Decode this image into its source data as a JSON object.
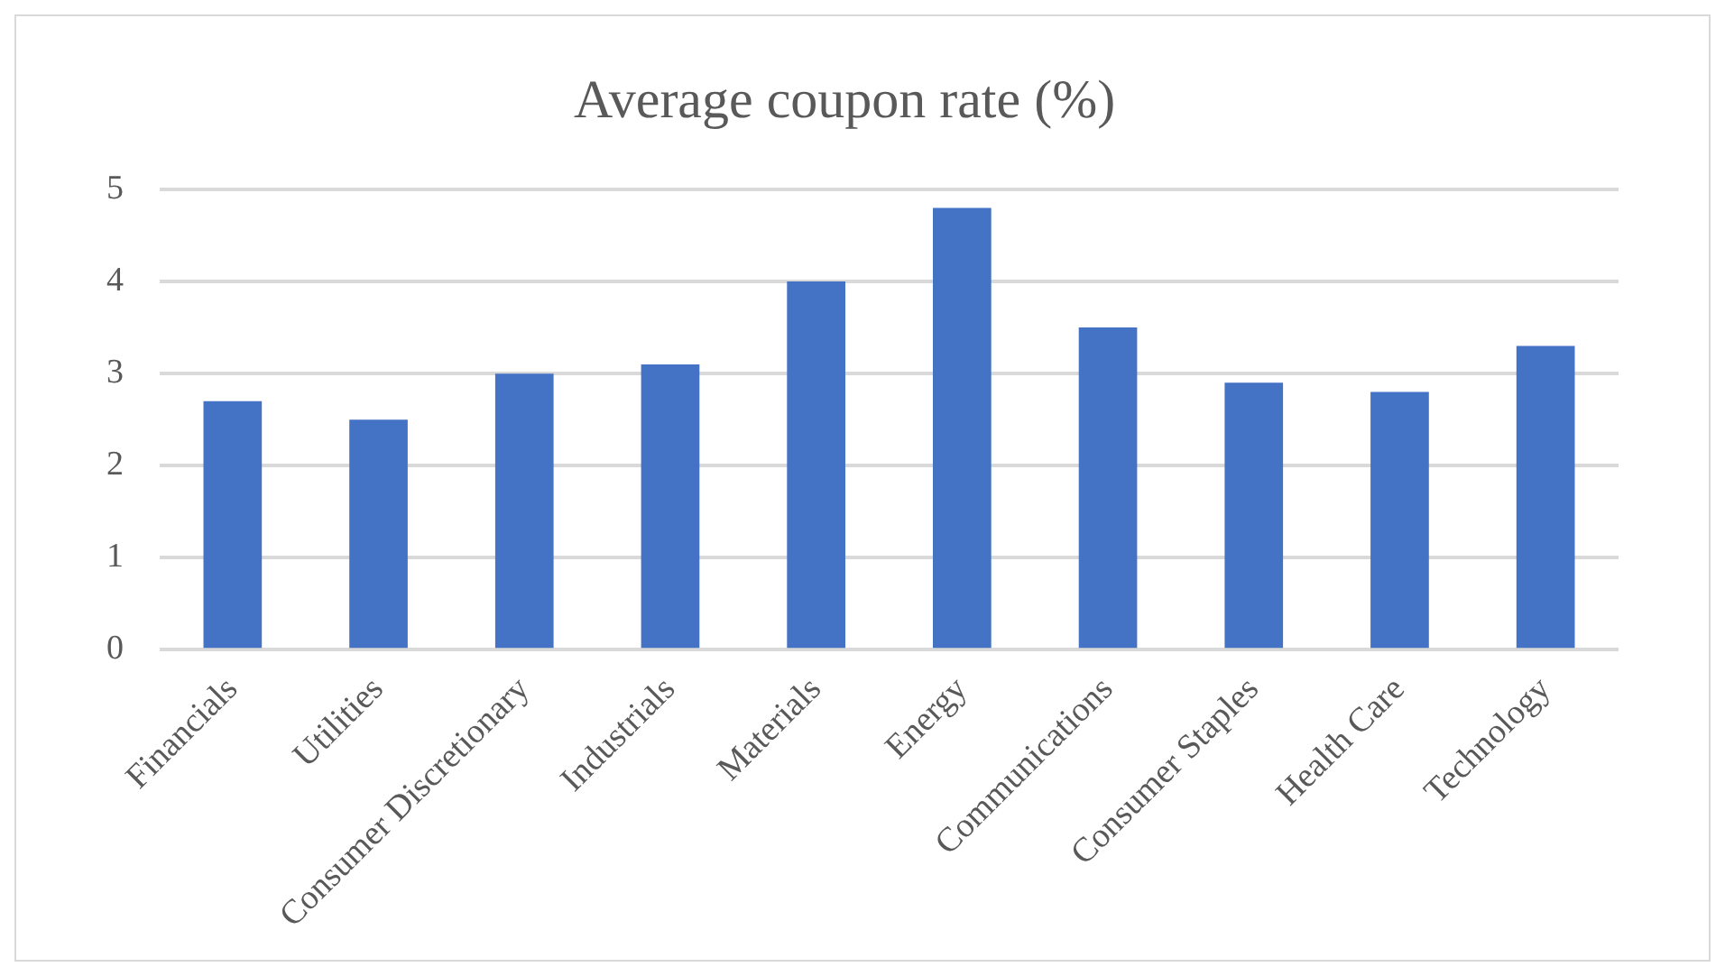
{
  "chart_data": {
    "type": "bar",
    "title": "Average coupon rate (%)",
    "categories": [
      "Financials",
      "Utilities",
      "Consumer Discretionary",
      "Industrials",
      "Materials",
      "Energy",
      "Communications",
      "Consumer Staples",
      "Health Care",
      "Technology"
    ],
    "values": [
      2.7,
      2.5,
      3.0,
      3.1,
      4.0,
      4.8,
      3.5,
      2.9,
      2.8,
      3.3
    ],
    "color": "#4472c4",
    "ylim": [
      0,
      5
    ],
    "yticks": [
      0,
      1,
      2,
      3,
      4,
      5
    ],
    "grid": "y",
    "legend": false
  }
}
